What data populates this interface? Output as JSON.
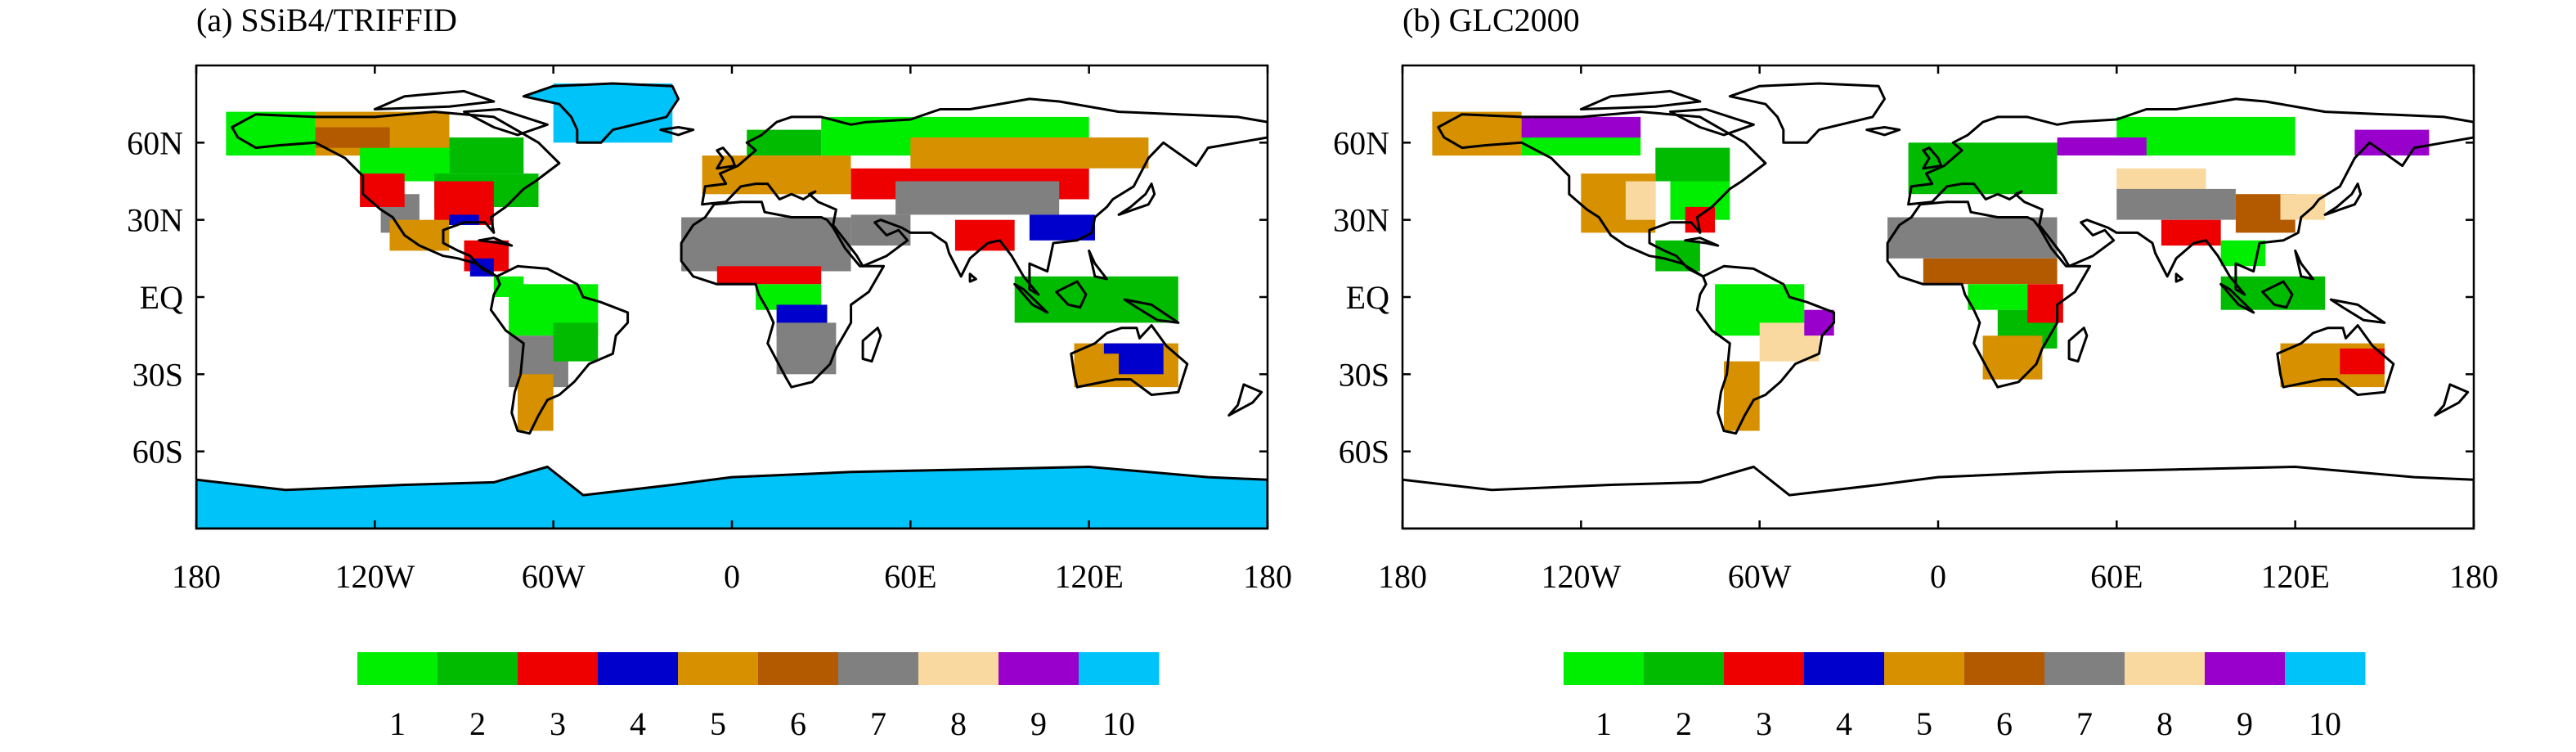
{
  "panels": [
    {
      "title": "(a) SSiB4/TRIFFID",
      "lat_labels": [
        "60N",
        "30N",
        "EQ",
        "30S",
        "60S"
      ],
      "lon_labels": [
        "180",
        "120W",
        "60W",
        "0",
        "60E",
        "120E",
        "180"
      ],
      "antarctica_filled": true
    },
    {
      "title": "(b) GLC2000",
      "lat_labels": [
        "60N",
        "30N",
        "EQ",
        "30S",
        "60S"
      ],
      "lon_labels": [
        "180",
        "120W",
        "60W",
        "0",
        "60E",
        "120E",
        "180"
      ],
      "antarctica_filled": false
    }
  ],
  "legend": {
    "labels": [
      "1",
      "2",
      "3",
      "4",
      "5",
      "6",
      "7",
      "8",
      "9",
      "10"
    ],
    "colors": [
      "#00ee00",
      "#00bb00",
      "#ee0000",
      "#0000cc",
      "#d69000",
      "#b35900",
      "#808080",
      "#f9d9a0",
      "#9900cc",
      "#00c3f9"
    ]
  },
  "colors": {
    "coast": "#000000",
    "frame": "#000000",
    "background": "#ffffff"
  }
}
